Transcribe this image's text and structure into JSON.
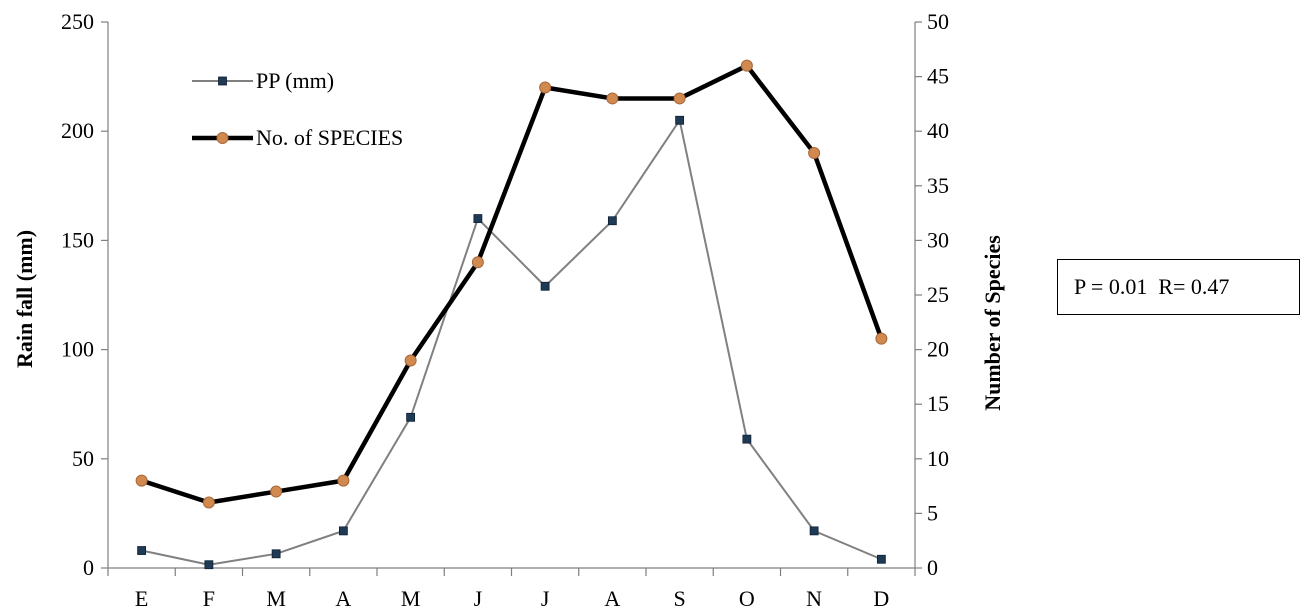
{
  "chart_data": {
    "type": "line",
    "categories": [
      "E",
      "F",
      "M",
      "A",
      "M",
      "J",
      "J",
      "A",
      "S",
      "O",
      "N",
      "D"
    ],
    "y_left": {
      "label": "Rain fall (mm)",
      "range": [
        0,
        250
      ],
      "ticks": [
        0,
        50,
        100,
        150,
        200,
        250
      ]
    },
    "y_right": {
      "label": "Number of Species",
      "range": [
        0,
        50
      ],
      "ticks": [
        0,
        5,
        10,
        15,
        20,
        25,
        30,
        35,
        40,
        45,
        50
      ]
    },
    "series": [
      {
        "name": "PP (mm)",
        "axis": "left",
        "color": "#808080",
        "marker": "square",
        "marker_color": "#1f3a55",
        "values": [
          8,
          1.5,
          6.5,
          17,
          69,
          160,
          129,
          159,
          205,
          59,
          17,
          4
        ]
      },
      {
        "name": "No. of SPECIES",
        "axis": "right",
        "color": "#000000",
        "marker": "circle",
        "marker_color": "#d08a50",
        "values": [
          8,
          6,
          7,
          8,
          19,
          28,
          44,
          43,
          43,
          46,
          38,
          21
        ]
      }
    ],
    "legend_position": "top-left",
    "grid": false,
    "annotation": "P = 0.01  R= 0.47"
  }
}
